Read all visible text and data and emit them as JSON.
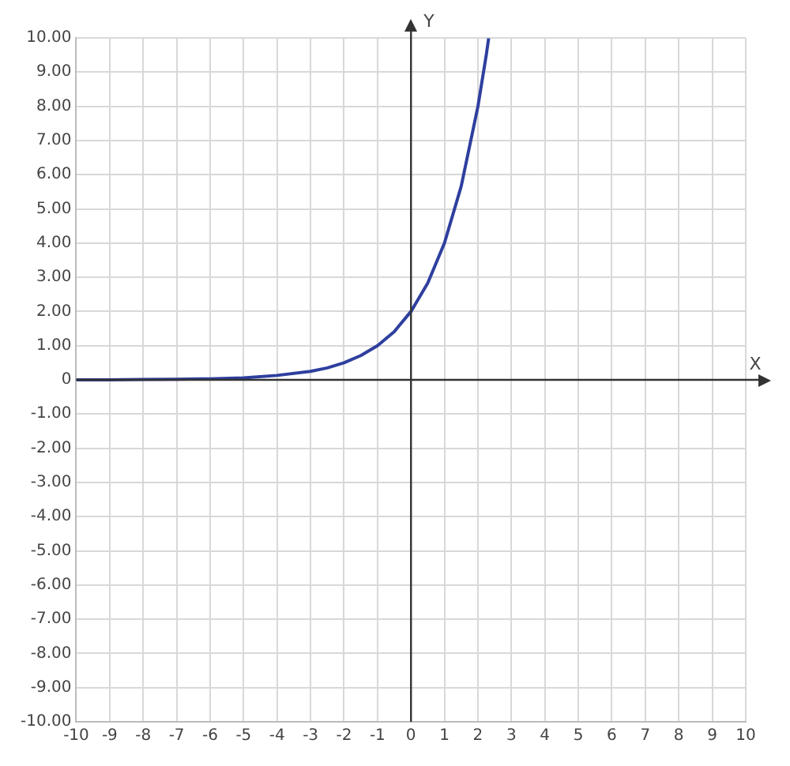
{
  "chart_data": {
    "type": "line",
    "xlabel": "X",
    "ylabel": "Y",
    "x": [
      -10,
      -9,
      -8,
      -7,
      -6,
      -5,
      -4,
      -3,
      -2.5,
      -2,
      -1.5,
      -1,
      -0.5,
      0,
      0.5,
      1,
      1.5,
      2,
      2.25,
      2.32
    ],
    "series": [
      {
        "color": "#2e3f9e",
        "values": [
          0,
          0,
          0.01,
          0.02,
          0.03,
          0.06,
          0.13,
          0.25,
          0.35,
          0.5,
          0.71,
          1,
          1.41,
          2,
          2.83,
          4,
          5.66,
          8,
          9.51,
          9.99
        ]
      }
    ],
    "xlim": [
      -10,
      10
    ],
    "xticks": [
      -10,
      -9,
      -8,
      -7,
      -6,
      -5,
      -4,
      -3,
      -2,
      -1,
      0,
      1,
      2,
      3,
      4,
      5,
      6,
      7,
      8,
      9,
      10
    ],
    "ylim": [
      -10,
      10
    ],
    "yticks": [
      {
        "value": -10,
        "label": "-10.00"
      },
      {
        "value": -9,
        "label": "-9.00"
      },
      {
        "value": -8,
        "label": "-8.00"
      },
      {
        "value": -7,
        "label": "-7.00"
      },
      {
        "value": -6,
        "label": "-6.00"
      },
      {
        "value": -5,
        "label": "-5.00"
      },
      {
        "value": -4,
        "label": "-4.00"
      },
      {
        "value": -3,
        "label": "-3.00"
      },
      {
        "value": -2,
        "label": "-2.00"
      },
      {
        "value": -1,
        "label": "-1.00"
      },
      {
        "value": 0,
        "label": "0"
      },
      {
        "value": 1,
        "label": "1.00"
      },
      {
        "value": 2,
        "label": "2.00"
      },
      {
        "value": 3,
        "label": "3.00"
      },
      {
        "value": 4,
        "label": "4.00"
      },
      {
        "value": 5,
        "label": "5.00"
      },
      {
        "value": 6,
        "label": "6.00"
      },
      {
        "value": 7,
        "label": "7.00"
      },
      {
        "value": 8,
        "label": "8.00"
      },
      {
        "value": 9,
        "label": "9.00"
      },
      {
        "value": 10,
        "label": "10.00"
      }
    ],
    "grid": true,
    "marker": "none",
    "line_style": "solid",
    "legend": false
  }
}
